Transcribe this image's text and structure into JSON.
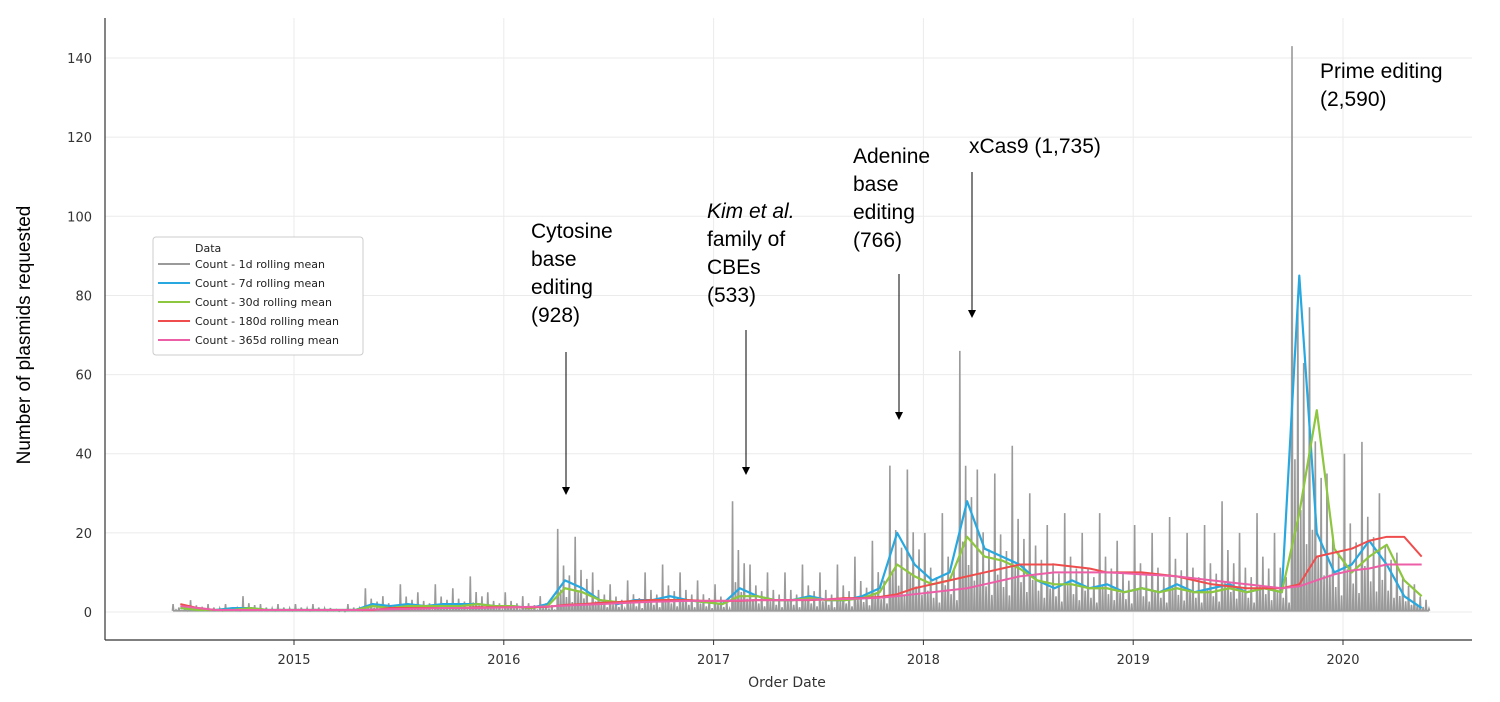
{
  "chart_data": {
    "type": "line",
    "xlabel": "Order Date",
    "ylabel": "Number of plasmids requested",
    "x_ticks": [
      "2015",
      "2016",
      "2017",
      "2018",
      "2019",
      "2020"
    ],
    "y_ticks": [
      "0",
      "20",
      "40",
      "60",
      "80",
      "100",
      "120",
      "140"
    ],
    "xlim": [
      "2014-01",
      "2020-08"
    ],
    "ylim": [
      -7,
      147
    ],
    "grid": true,
    "legend": {
      "title": "Data",
      "placement": "center-left"
    },
    "colors": {
      "1d": "#9a9a9a",
      "7d": "#29a8df",
      "30d": "#8dc63f",
      "180d": "#ef4d4d",
      "365d": "#ec5fa7"
    },
    "x": [
      "2014-06",
      "2014-07",
      "2014-08",
      "2014-09",
      "2014-10",
      "2014-11",
      "2014-12",
      "2015-01",
      "2015-02",
      "2015-03",
      "2015-04",
      "2015-05",
      "2015-06",
      "2015-07",
      "2015-08",
      "2015-09",
      "2015-10",
      "2015-11",
      "2015-12",
      "2016-01",
      "2016-02",
      "2016-03",
      "2016-04",
      "2016-05",
      "2016-06",
      "2016-07",
      "2016-08",
      "2016-09",
      "2016-10",
      "2016-11",
      "2016-12",
      "2017-01",
      "2017-02",
      "2017-03",
      "2017-04",
      "2017-05",
      "2017-06",
      "2017-07",
      "2017-08",
      "2017-09",
      "2017-10",
      "2017-11",
      "2017-12",
      "2018-01",
      "2018-02",
      "2018-03",
      "2018-04",
      "2018-05",
      "2018-06",
      "2018-07",
      "2018-08",
      "2018-09",
      "2018-10",
      "2018-11",
      "2018-12",
      "2019-01",
      "2019-02",
      "2019-03",
      "2019-04",
      "2019-05",
      "2019-06",
      "2019-07",
      "2019-08",
      "2019-09",
      "2019-10",
      "2019-11",
      "2019-12",
      "2020-01",
      "2020-02",
      "2020-03",
      "2020-04",
      "2020-05"
    ],
    "series": [
      {
        "name": "Count - 1d rolling mean",
        "values": [
          2,
          3,
          2,
          2,
          4,
          2,
          2,
          2,
          2,
          1,
          2,
          6,
          4,
          7,
          5,
          7,
          6,
          9,
          5,
          5,
          4,
          4,
          21,
          19,
          10,
          7,
          8,
          10,
          12,
          10,
          8,
          7,
          28,
          12,
          10,
          10,
          12,
          10,
          12,
          14,
          18,
          37,
          36,
          20,
          25,
          66,
          36,
          35,
          42,
          30,
          22,
          25,
          20,
          25,
          18,
          22,
          20,
          24,
          20,
          22,
          28,
          20,
          25,
          20,
          143,
          77,
          35,
          40,
          43,
          30,
          15,
          7
        ]
      },
      {
        "name": "Count - 7d rolling mean",
        "values": [
          1,
          0.5,
          0.5,
          1,
          1,
          0.5,
          0.5,
          0.5,
          0.5,
          0.5,
          0.5,
          2,
          1.5,
          2,
          1.5,
          2,
          2,
          2,
          1.5,
          1.5,
          1,
          2,
          8,
          6,
          3,
          2,
          3,
          3,
          4,
          3,
          2.5,
          2,
          6,
          4,
          3,
          3,
          4,
          3,
          3,
          4,
          6,
          20,
          12,
          8,
          10,
          28,
          16,
          14,
          12,
          8,
          6,
          8,
          6,
          7,
          5,
          6,
          5,
          7,
          5,
          6,
          7,
          5,
          6,
          5,
          85,
          20,
          10,
          12,
          18,
          12,
          4,
          1
        ]
      },
      {
        "name": "Count - 30d rolling mean",
        "values": [
          1,
          0.5,
          0.5,
          0.5,
          1,
          0.5,
          0.5,
          0.5,
          0.5,
          0.5,
          0.5,
          1.5,
          1,
          1.5,
          1.5,
          1.5,
          1.5,
          2,
          1.5,
          1.5,
          1,
          1.5,
          6,
          5,
          3,
          2.5,
          2.5,
          3,
          3,
          3,
          2.5,
          2,
          4,
          4,
          3,
          3,
          3.5,
          3,
          3,
          3.5,
          5,
          12,
          9,
          7,
          8,
          19,
          14,
          13,
          11,
          8,
          7,
          7,
          6,
          6,
          5,
          6,
          5,
          6,
          5,
          5,
          6,
          5,
          6,
          5,
          25,
          51,
          16,
          10,
          14,
          17,
          8,
          4
        ]
      },
      {
        "name": "Count - 180d rolling mean",
        "values": [
          2,
          1,
          0.5,
          0.5,
          0.5,
          0.5,
          0.5,
          0.5,
          0.5,
          0.5,
          0.5,
          0.5,
          1,
          1,
          1,
          1,
          1,
          1.2,
          1.2,
          1.2,
          1.2,
          1.3,
          1.8,
          2,
          2.3,
          2.5,
          2.8,
          3,
          3,
          3,
          2.8,
          2.8,
          2.8,
          3,
          3,
          3,
          3,
          3.2,
          3.5,
          3.5,
          3.8,
          4.5,
          6,
          7,
          8,
          9,
          10,
          11,
          12,
          12,
          12,
          11.5,
          11,
          10,
          10,
          10,
          9.5,
          9,
          8,
          7,
          6.5,
          6,
          6,
          6,
          7,
          14,
          15,
          16,
          18,
          19,
          19,
          14
        ]
      },
      {
        "name": "Count - 365d rolling mean",
        "values": [
          1.5,
          1,
          0.5,
          0.5,
          0.5,
          0.5,
          0.5,
          0.5,
          0.5,
          0.5,
          0.5,
          0.6,
          0.7,
          0.8,
          0.9,
          1,
          1,
          1,
          1.1,
          1.2,
          1.3,
          1.4,
          1.6,
          1.8,
          2,
          2.2,
          2.4,
          2.6,
          2.7,
          2.8,
          2.8,
          2.8,
          2.9,
          3,
          3,
          3,
          3.1,
          3.2,
          3.3,
          3.4,
          3.6,
          4,
          4.5,
          5,
          5.5,
          6,
          7,
          8,
          9,
          9.5,
          10,
          10,
          10,
          10,
          9.8,
          9.5,
          9.3,
          9,
          8.5,
          8,
          7.5,
          7,
          6.5,
          6,
          6.5,
          8,
          9.5,
          10.5,
          11,
          12,
          12,
          12
        ]
      }
    ],
    "annotations": [
      {
        "lines": [
          "Cytosine",
          "base",
          "editing",
          "(928)"
        ],
        "date": "2016-04"
      },
      {
        "lines": [
          "Kim et al.",
          "family of",
          "CBEs",
          "(533)"
        ],
        "italic": "Kim et al.",
        "date": "2017-02"
      },
      {
        "lines": [
          "Adenine",
          "base",
          "editing",
          "(766)"
        ],
        "date": "2017-11"
      },
      {
        "lines": [
          "xCas9 (1,735)"
        ],
        "date": "2018-03"
      },
      {
        "lines": [
          "Prime editing",
          "(2,590)"
        ],
        "date": "2019-10"
      }
    ]
  }
}
